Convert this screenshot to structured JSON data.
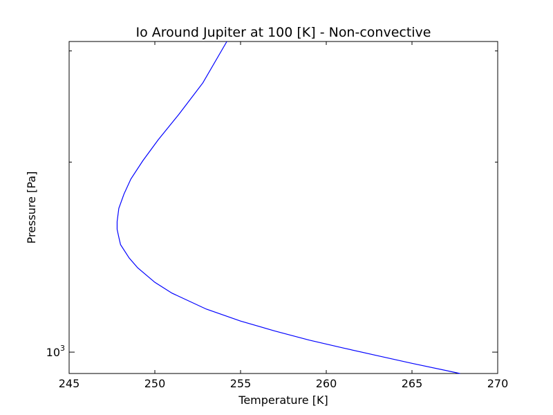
{
  "chart_data": {
    "type": "line",
    "title": "Io Around Jupiter at 100 [K] - Non-convective",
    "xlabel": "Temperature [K]",
    "ylabel": "Pressure [Pa]",
    "xlim": [
      245,
      270
    ],
    "ylim": [
      925,
      3105
    ],
    "yscale": "log",
    "grid": false,
    "x_ticks": [
      245,
      250,
      255,
      260,
      265,
      270
    ],
    "x_tick_labels": [
      "245",
      "250",
      "255",
      "260",
      "265",
      "270"
    ],
    "y_ticks_major": [
      1000
    ],
    "y_tick_labels_major": [
      {
        "base": "10",
        "exp": "3"
      }
    ],
    "y_ticks_minor": [
      2000,
      3000
    ],
    "series": [
      {
        "color": "#0000ff",
        "x": [
          267.8,
          265.0,
          263.0,
          261.0,
          259.0,
          257.0,
          255.0,
          253.0,
          251.0,
          250.0,
          249.0,
          248.5,
          248.0,
          247.9,
          247.8,
          247.8,
          247.9,
          248.2,
          248.6,
          249.3,
          250.2,
          251.4,
          252.8,
          254.2
        ],
        "y": [
          925,
          960,
          987,
          1015,
          1045,
          1080,
          1120,
          1170,
          1240,
          1290,
          1360,
          1410,
          1480,
          1520,
          1565,
          1610,
          1690,
          1780,
          1880,
          2010,
          2170,
          2380,
          2670,
          3105
        ]
      }
    ]
  }
}
